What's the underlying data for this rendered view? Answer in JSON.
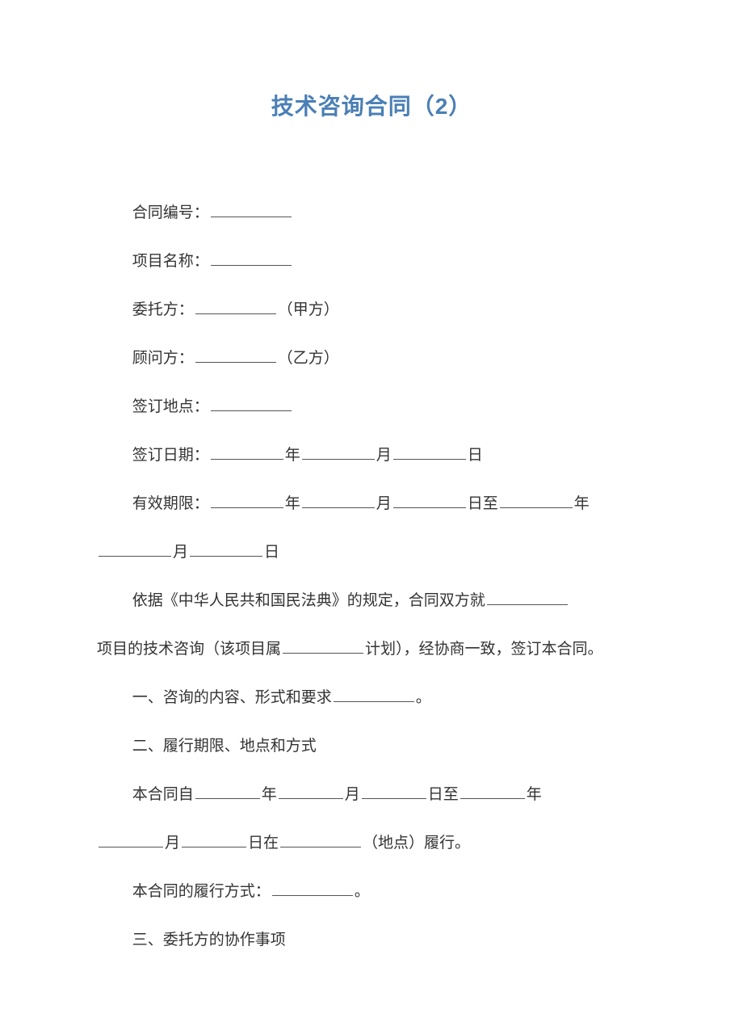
{
  "title": "技术咨询合同（2）",
  "fields": {
    "contract_no_label": "合同编号：",
    "project_name_label": "项目名称：",
    "entrusting_party_label": "委托方：",
    "entrusting_party_suffix": "（甲方）",
    "consultant_party_label": "顾问方：",
    "consultant_party_suffix": "（乙方）",
    "sign_place_label": "签订地点：",
    "sign_date_label": "签订日期：",
    "valid_period_label": "有效期限：",
    "year": "年",
    "month": "月",
    "day": "日",
    "to": "至"
  },
  "body": {
    "intro_1": "依据《中华人民共和国民法典》的规定，合同双方就",
    "intro_2": "项目的技术咨询（该项目属",
    "intro_3": "计划），经协商一致，签订本合同。",
    "section1": "一、咨询的内容、形式和要求",
    "section1_end": "。",
    "section2": "二、履行期限、地点和方式",
    "section2_body_1": "本合同自",
    "section2_body_2": "在",
    "section2_body_3": "（地点）履行。",
    "section2_perform_label": "本合同的履行方式：",
    "section2_perform_end": "。",
    "section3": "三、委托方的协作事项"
  },
  "colors": {
    "title": "#4a7fb5",
    "text": "#333333",
    "underline": "#555555",
    "background": "#ffffff"
  },
  "typography": {
    "title_fontsize": 28,
    "body_fontsize": 19,
    "title_fontfamily": "SimHei",
    "body_fontfamily": "SimSun",
    "line_height": 2.0
  }
}
